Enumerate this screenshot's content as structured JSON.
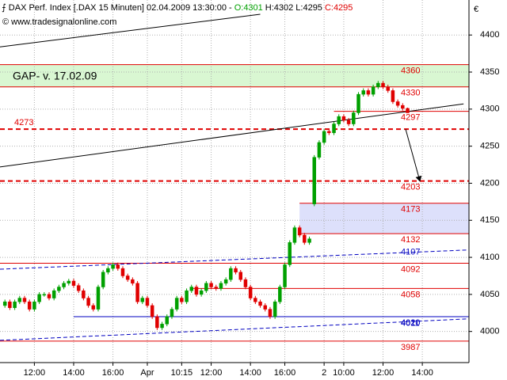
{
  "chart_data": {
    "type": "candlestick",
    "header": {
      "instrument": "DAX Perf. Index [.DAX  15 Minuten] 02.04.2009 13:30:00 -",
      "open_label": "O:4301",
      "high_label": "H:4302",
      "low_label": "L:4295",
      "close_label": "C:4295"
    },
    "copyright": "© www.tradesignalonline.com",
    "currency": "€",
    "up_color": "#00a000",
    "down_color": "#e00000",
    "ylim": [
      3958,
      4428
    ],
    "yticks": [
      4000,
      4050,
      4100,
      4150,
      4200,
      4250,
      4300,
      4350,
      4400
    ],
    "xlim": [
      -1,
      94.5
    ],
    "xticks": [
      {
        "value": 6,
        "label": "12:00"
      },
      {
        "value": 14,
        "label": "14:00"
      },
      {
        "value": 22,
        "label": "16:00"
      },
      {
        "value": 29,
        "label": "Apr"
      },
      {
        "value": 36,
        "label": "10:15"
      },
      {
        "value": 42,
        "label": "12:00"
      },
      {
        "value": 50,
        "label": "14:00"
      },
      {
        "value": 57,
        "label": "16:00"
      },
      {
        "value": 65,
        "label": "2"
      },
      {
        "value": 69,
        "label": "10:00"
      },
      {
        "value": 77,
        "label": "12:00"
      },
      {
        "value": 85,
        "label": "14:00"
      }
    ],
    "grid": true,
    "open": [
      4035,
      4040,
      4032,
      4040,
      4045,
      4040,
      4030,
      4040,
      4050,
      4050,
      4045,
      4055,
      4060,
      4065,
      4068,
      4062,
      4055,
      4045,
      4035,
      4030,
      4060,
      4080,
      4085,
      4090,
      4085,
      4075,
      4070,
      4065,
      4040,
      4045,
      4035,
      4020,
      4005,
      4010,
      4020,
      4030,
      4045,
      4040,
      4055,
      4060,
      4050,
      4055,
      4065,
      4060,
      4058,
      4065,
      4070,
      4085,
      4080,
      4070,
      4060,
      4045,
      4040,
      4035,
      4030,
      4020,
      4040,
      4060,
      4090,
      4120,
      4140,
      4130,
      4120,
      4172,
      4235,
      4255,
      4270,
      4268,
      4280,
      4290,
      4285,
      4280,
      4295,
      4320,
      4325,
      4320,
      4330,
      4335,
      4330,
      4325,
      4310,
      4305,
      4301
    ],
    "high": [
      4043,
      4043,
      4043,
      4048,
      4048,
      4043,
      4043,
      4053,
      4053,
      4053,
      4058,
      4063,
      4068,
      4071,
      4071,
      4065,
      4058,
      4048,
      4038,
      4063,
      4083,
      4088,
      4093,
      4093,
      4088,
      4078,
      4073,
      4068,
      4048,
      4048,
      4038,
      4023,
      4013,
      4023,
      4033,
      4048,
      4048,
      4058,
      4063,
      4063,
      4058,
      4068,
      4068,
      4063,
      4068,
      4073,
      4088,
      4088,
      4083,
      4073,
      4063,
      4048,
      4043,
      4038,
      4033,
      4043,
      4063,
      4093,
      4123,
      4143,
      4143,
      4133,
      4128,
      4238,
      4258,
      4273,
      4273,
      4283,
      4293,
      4293,
      4288,
      4298,
      4323,
      4328,
      4328,
      4333,
      4338,
      4338,
      4333,
      4328,
      4313,
      4308,
      4302
    ],
    "low": [
      4032,
      4029,
      4029,
      4037,
      4037,
      4027,
      4027,
      4037,
      4047,
      4042,
      4042,
      4052,
      4057,
      4062,
      4059,
      4052,
      4042,
      4032,
      4027,
      4027,
      4057,
      4077,
      4082,
      4082,
      4072,
      4067,
      4062,
      4037,
      4037,
      4032,
      4017,
      4002,
      4002,
      4007,
      4017,
      4027,
      4037,
      4037,
      4052,
      4047,
      4047,
      4052,
      4057,
      4055,
      4055,
      4062,
      4067,
      4077,
      4067,
      4057,
      4042,
      4037,
      4032,
      4027,
      4017,
      4017,
      4037,
      4057,
      4087,
      4117,
      4127,
      4117,
      4117,
      4169,
      4232,
      4252,
      4265,
      4265,
      4277,
      4282,
      4277,
      4277,
      4292,
      4317,
      4317,
      4317,
      4327,
      4327,
      4322,
      4307,
      4302,
      4298,
      4295
    ],
    "close": [
      4040,
      4032,
      4040,
      4045,
      4040,
      4030,
      4040,
      4050,
      4050,
      4045,
      4055,
      4060,
      4065,
      4068,
      4062,
      4055,
      4045,
      4035,
      4030,
      4060,
      4080,
      4085,
      4090,
      4085,
      4075,
      4070,
      4065,
      4040,
      4045,
      4035,
      4020,
      4005,
      4010,
      4020,
      4030,
      4045,
      4040,
      4055,
      4060,
      4050,
      4055,
      4065,
      4060,
      4058,
      4065,
      4070,
      4085,
      4080,
      4070,
      4060,
      4045,
      4040,
      4035,
      4030,
      4020,
      4040,
      4060,
      4090,
      4120,
      4140,
      4130,
      4120,
      4125,
      4235,
      4255,
      4270,
      4268,
      4280,
      4290,
      4285,
      4280,
      4295,
      4320,
      4325,
      4320,
      4330,
      4335,
      4330,
      4325,
      4310,
      4305,
      4301,
      4295
    ],
    "bands": [
      {
        "low": 4330,
        "high": 4360,
        "color": "#d9f7d2",
        "x_start": -1,
        "label": "GAP- v. 17.02.09"
      },
      {
        "low": 4132,
        "high": 4173,
        "color": "#dde0fb",
        "x_start": 60
      }
    ],
    "levels": [
      {
        "value": 4360,
        "color": "#e00000",
        "style": "solid",
        "x_start": -1,
        "label_side": "right"
      },
      {
        "value": 4330,
        "color": "#e00000",
        "style": "solid",
        "x_start": -1,
        "label_side": "right"
      },
      {
        "value": 4297,
        "color": "#e00000",
        "style": "solid",
        "x_start": 67,
        "label_side": "right"
      },
      {
        "value": 4273,
        "color": "#e00000",
        "style": "dashed",
        "x_start": -1,
        "label_side": "left"
      },
      {
        "value": 4203,
        "color": "#e00000",
        "style": "dashed",
        "x_start": -1,
        "label_side": "right"
      },
      {
        "value": 4173,
        "color": "#e00000",
        "style": "solid",
        "x_start": 60,
        "label_side": "right"
      },
      {
        "value": 4132,
        "color": "#e00000",
        "style": "solid",
        "x_start": 60,
        "label_side": "right"
      },
      {
        "value": 4092,
        "color": "#e00000",
        "style": "solid",
        "x_start": -1,
        "label_side": "right"
      },
      {
        "value": 4058,
        "color": "#e00000",
        "style": "solid",
        "x_start": 38,
        "label_side": "right"
      },
      {
        "value": 4020,
        "color": "#0000c0",
        "style": "solid",
        "x_start": 14,
        "label_side": "right"
      },
      {
        "value": 3987,
        "color": "#e00000",
        "style": "solid",
        "x_start": -1,
        "label_side": "right"
      }
    ],
    "trendlines": [
      {
        "x": [
          -1,
          93.4
        ],
        "y": [
          4222,
          4307
        ],
        "color": "#000000",
        "style": "solid"
      },
      {
        "x": [
          -1,
          52
        ],
        "y": [
          4384,
          4428
        ],
        "color": "#000000",
        "style": "solid"
      },
      {
        "x": [
          -1,
          94.5
        ],
        "y": [
          4084,
          4110
        ],
        "color": "#0000c0",
        "style": "dashed",
        "label": 4107
      },
      {
        "x": [
          -1,
          94.5
        ],
        "y": [
          3988,
          4017
        ],
        "color": "#0000c0",
        "style": "dashed",
        "label": 4011
      }
    ],
    "arrow": {
      "x": [
        81.6,
        84.5
      ],
      "y": [
        4273,
        4203
      ],
      "color": "#000000"
    }
  }
}
